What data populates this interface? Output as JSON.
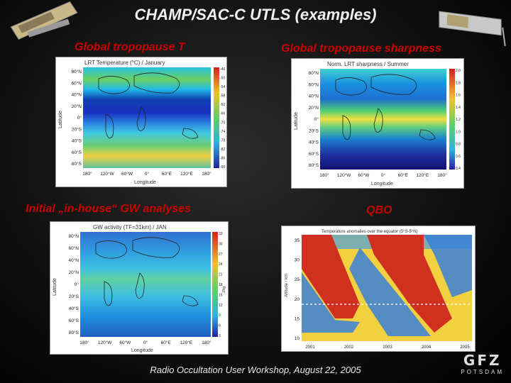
{
  "header": {
    "title": "CHAMP/SAC-C UTLS (examples)"
  },
  "panels": {
    "top_left": {
      "label": "Global tropopause T",
      "plot_title": "LRT Temperature (°C) / January",
      "y_ticks": [
        "80°N",
        "60°N",
        "40°N",
        "20°N",
        "0°",
        "20°S",
        "40°S",
        "60°S",
        "80°S"
      ],
      "x_ticks": [
        "180°",
        "120°W",
        "60°W",
        "0°",
        "60°E",
        "120°E",
        "180°"
      ],
      "y_label": "Latitude",
      "x_label": "Longitude",
      "colorbar_ticks": [
        "-46",
        "-50",
        "-54",
        "-58",
        "-62",
        "-66",
        "-70",
        "-74",
        "-78",
        "-82",
        "-86",
        "-90"
      ]
    },
    "top_right": {
      "label": "Global tropopause sharpness",
      "plot_title": "Norm. LRT sharpness / Summer",
      "y_ticks": [
        "80°N",
        "60°N",
        "40°N",
        "20°N",
        "0°",
        "20°S",
        "40°S",
        "60°S",
        "80°S"
      ],
      "x_ticks": [
        "180°",
        "120°W",
        "60°W",
        "0°",
        "60°E",
        "120°E",
        "180°"
      ],
      "y_label": "Latitude",
      "x_label": "Longitude",
      "colorbar_ticks": [
        "2.0",
        "1.8",
        "1.6",
        "1.4",
        "1.2",
        "1.0",
        "0.8",
        "0.6",
        "0.4"
      ]
    },
    "bottom_left": {
      "label": "Initial „in-house“ GW analyses",
      "plot_title": "GW activity (TF=31km) / JAN",
      "y_ticks": [
        "80°N",
        "60°N",
        "40°N",
        "20°N",
        "0°",
        "20°S",
        "40°S",
        "60°S",
        "80°S"
      ],
      "x_ticks": [
        "180°",
        "120°W",
        "60°W",
        "0°",
        "60°E",
        "120°E",
        "180°"
      ],
      "y_label": "Latitude",
      "x_label": "Longitude",
      "colorbar_ticks": [
        "33",
        "30",
        "27",
        "24",
        "21",
        "18",
        "15",
        "12",
        "9",
        "6",
        "3"
      ],
      "colorbar_label": "J/kg"
    },
    "bottom_right": {
      "label": "QBO",
      "plot_title": "Temperature anomalies over the equator (5°S-5°N)",
      "y_ticks": [
        "35",
        "30",
        "25",
        "20",
        "15",
        "10"
      ],
      "y_label": "Altitude / km",
      "x_ticks": [
        "2001",
        "2002",
        "2003",
        "2004",
        "2005"
      ]
    }
  },
  "footer": {
    "text": "Radio Occultation User Workshop, August 22, 2005"
  },
  "logo": {
    "name": "GFZ",
    "sub": "POTSDAM"
  },
  "colors": {
    "accent_red": "#cc0000",
    "title_white": "#f0f0f0"
  }
}
